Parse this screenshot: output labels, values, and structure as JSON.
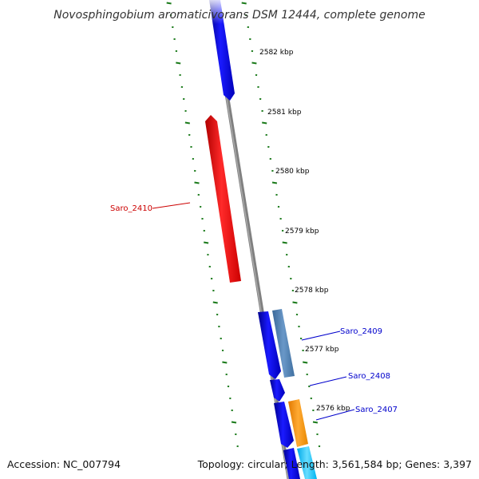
{
  "title": "Novosphingobium aromaticivorans DSM 12444, complete genome",
  "footer": {
    "accession": "Accession: NC_007794",
    "summary": "Topology: circular; Length: 3,561,584 bp; Genes: 3,397"
  },
  "colors": {
    "backbone": "#808080",
    "tick": "#1a7a1a",
    "forward_gene": "#0000ee",
    "reverse_gene": "#ee0000",
    "steelblue_gene": "#4f7fb0",
    "orange_gene": "#ff9a1a",
    "cyan_gene": "#33ccff",
    "label_red": "#cc0000",
    "label_blue": "#0000cc"
  },
  "kbp_ticks": [
    {
      "label": "2582 kbp"
    },
    {
      "label": "2581 kbp"
    },
    {
      "label": "2580 kbp"
    },
    {
      "label": "2579 kbp"
    },
    {
      "label": "2578 kbp"
    },
    {
      "label": "2577 kbp"
    },
    {
      "label": "2576 kbp"
    }
  ],
  "gene_labels": [
    {
      "text": "Saro_2410",
      "color": "#cc0000"
    },
    {
      "text": "Saro_2409",
      "color": "#0000cc"
    },
    {
      "text": "Saro_2408",
      "color": "#0000cc"
    },
    {
      "text": "Saro_2407",
      "color": "#0000cc"
    }
  ]
}
